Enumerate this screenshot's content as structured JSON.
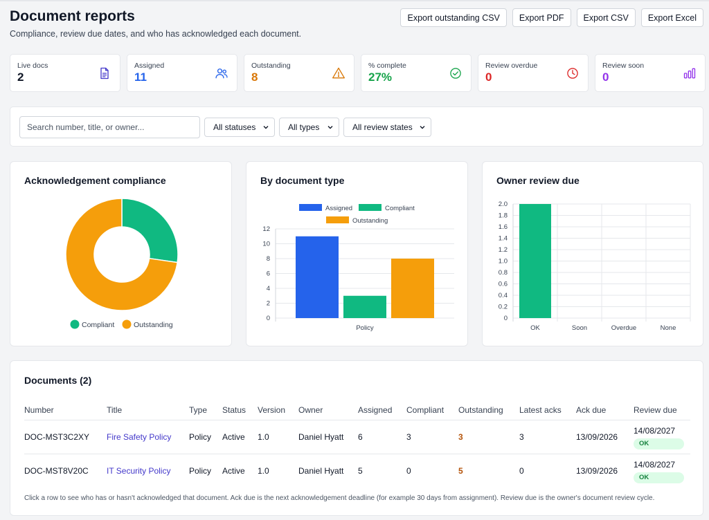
{
  "header": {
    "title": "Document reports",
    "subtitle": "Compliance, review due dates, and who has acknowledged each document."
  },
  "actions": {
    "export_outstanding": "Export outstanding CSV",
    "export_pdf": "Export PDF",
    "export_csv": "Export CSV",
    "export_excel": "Export Excel"
  },
  "stats": [
    {
      "label": "Live docs",
      "value": "2",
      "color": "#111827",
      "icon": "document-icon"
    },
    {
      "label": "Assigned",
      "value": "11",
      "color": "#2563eb",
      "icon": "users-icon"
    },
    {
      "label": "Outstanding",
      "value": "8",
      "color": "#d97706",
      "icon": "warning-icon"
    },
    {
      "label": "% complete",
      "value": "27%",
      "color": "#16a34a",
      "icon": "check-circle-icon"
    },
    {
      "label": "Review overdue",
      "value": "0",
      "color": "#dc2626",
      "icon": "clock-icon"
    },
    {
      "label": "Review soon",
      "value": "0",
      "color": "#9333ea",
      "icon": "bar-chart-icon"
    }
  ],
  "filters": {
    "search_placeholder": "Search number, title, or owner...",
    "status": "All statuses",
    "type": "All types",
    "review": "All review states"
  },
  "chart_data": [
    {
      "type": "pie",
      "title": "Acknowledgement compliance",
      "labels": [
        "Compliant",
        "Outstanding"
      ],
      "values": [
        3,
        8
      ],
      "colors": [
        "#10b981",
        "#f59e0b"
      ],
      "legend": "bottom"
    },
    {
      "type": "bar",
      "title": "By document type",
      "categories": [
        "Policy"
      ],
      "series": [
        {
          "name": "Assigned",
          "values": [
            11
          ],
          "color": "#2563eb"
        },
        {
          "name": "Compliant",
          "values": [
            3
          ],
          "color": "#10b981"
        },
        {
          "name": "Outstanding",
          "values": [
            8
          ],
          "color": "#f59e0b"
        }
      ],
      "ylim": [
        0,
        12
      ],
      "yticks": [
        "0",
        "2",
        "4",
        "6",
        "8",
        "10",
        "12"
      ],
      "legend": "top"
    },
    {
      "type": "bar",
      "title": "Owner review due",
      "categories": [
        "OK",
        "Soon",
        "Overdue",
        "None"
      ],
      "values": [
        2,
        0,
        0,
        0
      ],
      "color": "#10b981",
      "ylim": [
        0,
        2
      ],
      "yticks": [
        "0",
        "0.2",
        "0.4",
        "0.6",
        "0.8",
        "1.0",
        "1.2",
        "1.4",
        "1.6",
        "1.8",
        "2.0"
      ]
    }
  ],
  "documents": {
    "title": "Documents (2)",
    "columns": [
      "Number",
      "Title",
      "Type",
      "Status",
      "Version",
      "Owner",
      "Assigned",
      "Compliant",
      "Outstanding",
      "Latest acks",
      "Ack due",
      "Review due"
    ],
    "rows": [
      {
        "number": "DOC-MST3C2XY",
        "title": "Fire Safety Policy",
        "type": "Policy",
        "status": "Active",
        "version": "1.0",
        "owner": "Daniel Hyatt",
        "assigned": "6",
        "compliant": "3",
        "outstanding": "3",
        "latest_acks": "3",
        "ack_due": "13/09/2026",
        "review_due": "14/08/2027",
        "review_state": "OK"
      },
      {
        "number": "DOC-MST8V20C",
        "title": "IT Security Policy",
        "type": "Policy",
        "status": "Active",
        "version": "1.0",
        "owner": "Daniel Hyatt",
        "assigned": "5",
        "compliant": "0",
        "outstanding": "5",
        "latest_acks": "0",
        "ack_due": "13/09/2026",
        "review_due": "14/08/2027",
        "review_state": "OK"
      }
    ],
    "footnote": "Click a row to see who has or hasn't acknowledged that document. Ack due is the next acknowledgement deadline (for example 30 days from assignment). Review due is the owner's document review cycle."
  }
}
